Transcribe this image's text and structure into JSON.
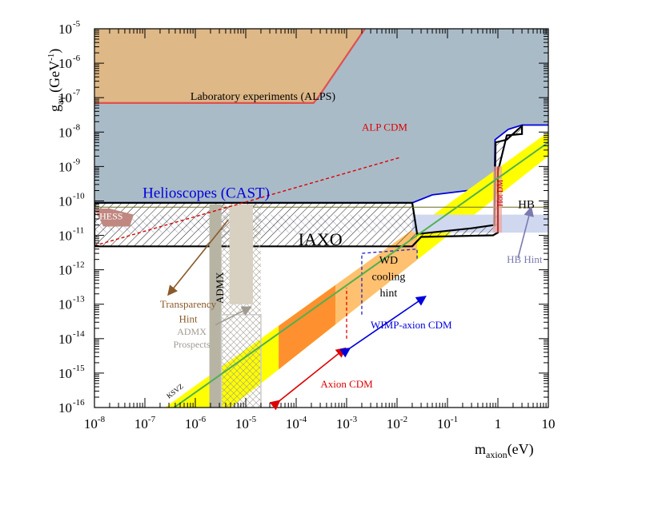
{
  "chart_data": {
    "type": "area",
    "title": "",
    "x_axis": {
      "label_main": "m",
      "label_sub": "axion",
      "label_unit": "(eV)",
      "scale": "log",
      "range": [
        1e-08,
        10
      ],
      "ticks": [
        {
          "base": "10",
          "exp": "-8",
          "value": 1e-08
        },
        {
          "base": "10",
          "exp": "-7",
          "value": 1e-07
        },
        {
          "base": "10",
          "exp": "-6",
          "value": 1e-06
        },
        {
          "base": "10",
          "exp": "-5",
          "value": 1e-05
        },
        {
          "base": "10",
          "exp": "-4",
          "value": 0.0001
        },
        {
          "base": "10",
          "exp": "-3",
          "value": 0.001
        },
        {
          "base": "10",
          "exp": "-2",
          "value": 0.01
        },
        {
          "base": "10",
          "exp": "-1",
          "value": 0.1
        },
        {
          "base": "1",
          "exp": "",
          "value": 1
        },
        {
          "base": "10",
          "exp": "",
          "value": 10
        }
      ]
    },
    "y_axis": {
      "label_main": "g",
      "label_sub": "aγ",
      "label_unit": "(GeV",
      "label_unit_exp": "-1",
      "label_close": ")",
      "scale": "log",
      "range": [
        1e-16,
        1e-05
      ],
      "ticks": [
        {
          "exp": "-16",
          "value": 1e-16
        },
        {
          "exp": "-15",
          "value": 1e-15
        },
        {
          "exp": "-14",
          "value": 1e-14
        },
        {
          "exp": "-13",
          "value": 1e-13
        },
        {
          "exp": "-12",
          "value": 1e-12
        },
        {
          "exp": "-11",
          "value": 1e-11
        },
        {
          "exp": "-10",
          "value": 1e-10
        },
        {
          "exp": "-9",
          "value": 1e-09
        },
        {
          "exp": "-8",
          "value": 1e-08
        },
        {
          "exp": "-7",
          "value": 1e-07
        },
        {
          "exp": "-6",
          "value": 1e-06
        },
        {
          "exp": "-5",
          "value": 1e-05
        }
      ]
    },
    "grid": false,
    "regions": [
      {
        "name": "Helioscopes (CAST)",
        "color": "#aabbc8",
        "edge_color": "#0000dd",
        "points": [
          [
            1e-08,
            1e-05
          ],
          [
            10,
            1e-05
          ],
          [
            10,
            1.6e-08
          ],
          [
            3,
            1.6e-08
          ],
          [
            1.6,
            1.2e-08
          ],
          [
            0.88,
            6e-09
          ],
          [
            0.85,
            3e-10
          ],
          [
            0.5,
            2e-10
          ],
          [
            0.25,
            2e-10
          ],
          [
            0.05,
            1.5e-10
          ],
          [
            0.02,
            8.8e-11
          ],
          [
            1e-08,
            8.8e-11
          ]
        ]
      },
      {
        "name": "Laboratory experiments (ALPS)",
        "color": "#deb887",
        "edge_color": "#e05050",
        "points": [
          [
            1e-08,
            1e-05
          ],
          [
            0.0023,
            1e-05
          ],
          [
            0.00027,
            1e-07
          ],
          [
            0.00022,
            7e-08
          ],
          [
            1e-08,
            7e-08
          ]
        ]
      },
      {
        "name": "HESS",
        "color": "#c08880",
        "points": [
          [
            1e-08,
            6e-11
          ],
          [
            2e-08,
            6e-11
          ],
          [
            6e-08,
            4e-11
          ],
          [
            5e-08,
            1.8e-11
          ],
          [
            1.5e-08,
            1.8e-11
          ]
        ]
      },
      {
        "name": "IAXO",
        "color": "#ffffff",
        "hatch": "#000000",
        "points": [
          [
            1e-08,
            8.8e-11
          ],
          [
            0.02,
            8.8e-11
          ],
          [
            0.025,
            1.1e-11
          ],
          [
            0.3,
            1.6e-11
          ],
          [
            0.85,
            2e-11
          ],
          [
            0.9,
            5e-09
          ],
          [
            1.5,
            6e-09
          ],
          [
            2.5,
            1.2e-08
          ],
          [
            3,
            1.5e-08
          ],
          [
            3,
            8.8e-09
          ],
          [
            1.5,
            8e-09
          ],
          [
            1,
            7e-10
          ],
          [
            1,
            1.2e-11
          ],
          [
            0.8,
            1e-11
          ],
          [
            0.03,
            9e-12
          ],
          [
            0.02,
            4.8e-12
          ],
          [
            1e-08,
            4.8e-12
          ]
        ]
      },
      {
        "name": "HB",
        "edge_color": "#6b6b20",
        "value": 6.6e-11,
        "x_range": [
          1e-08,
          10
        ]
      },
      {
        "name": "HB Hint",
        "color": "#d0d8f0",
        "x_range": [
          0.02,
          10
        ],
        "y_range": [
          1.2e-11,
          4e-11
        ]
      },
      {
        "name": "ADMX",
        "color": "#b8b4a4",
        "x_range": [
          1.9e-06,
          3.3e-06
        ],
        "y_range": [
          1e-16,
          8e-11
        ]
      },
      {
        "name": "ADMX Prospects",
        "color": "#d8d0c0",
        "x_range": [
          3.3e-06,
          2e-05
        ],
        "y_range": [
          1e-16,
          8e-11
        ]
      },
      {
        "name": "Hot DM",
        "color": "#e8a8a0",
        "x_range": [
          0.8,
          1.2
        ],
        "y_range": [
          1.2e-11,
          1e-09
        ]
      },
      {
        "name": "KSVZ band",
        "color": "#ffff00",
        "points": [
          [
            2.5e-07,
            1e-16
          ],
          [
            10,
            1e-08
          ],
          [
            10,
            2e-09
          ],
          [
            5e-06,
            1e-16
          ]
        ]
      },
      {
        "name": "Axion CDM (orange)",
        "color": "#ff9030",
        "points": [
          [
            4.5e-05,
            1e-16
          ],
          [
            0.0006,
            1e-16
          ],
          [
            0.0006,
            1e-12
          ],
          [
            4.5e-05,
            1e-12
          ]
        ]
      },
      {
        "name": "WD cooling hint",
        "color": "#ffc070",
        "edge_color": "#2020cc",
        "points": [
          [
            0.0006,
            1e-16
          ],
          [
            0.002,
            1e-16
          ],
          [
            0.002,
            3e-13
          ],
          [
            0.025,
            3e-13
          ],
          [
            0.025,
            1e-10
          ],
          [
            0.002,
            1e-10
          ],
          [
            0.0006,
            1e-10
          ]
        ]
      }
    ],
    "lines": [
      {
        "name": "KSVZ",
        "color": "#50b050",
        "points": [
          [
            1e-07,
            2.5e-17
          ],
          [
            10,
            5e-09
          ]
        ]
      },
      {
        "name": "ALP CDM",
        "color": "#dd0000",
        "style": "dashed",
        "points": [
          [
            1e-08,
            5e-12
          ],
          [
            0.011,
            1.8e-09
          ]
        ]
      }
    ],
    "labels": [
      {
        "text": "Laboratory experiments (ALPS)",
        "color": "#000000"
      },
      {
        "text": "Helioscopes (CAST)",
        "color": "#0000dd"
      },
      {
        "text": "HESS",
        "color": "#ffffff"
      },
      {
        "text": "IAXO",
        "color": "#000000"
      },
      {
        "text": "HB",
        "color": "#000000"
      },
      {
        "text": "HB Hint",
        "color": "#7a7ab0"
      },
      {
        "text": "ALP CDM",
        "color": "#dd0000"
      },
      {
        "text": "Transparency",
        "color": "#8b5a2b"
      },
      {
        "text": "Hint",
        "color": "#8b5a2b"
      },
      {
        "text": "ADMX",
        "color": "#000000"
      },
      {
        "text": "ADMX",
        "color": "#a09a90"
      },
      {
        "text": "Prospects",
        "color": "#a09a90"
      },
      {
        "text": "WD",
        "color": "#000000"
      },
      {
        "text": "cooling",
        "color": "#000000"
      },
      {
        "text": "hint",
        "color": "#000000"
      },
      {
        "text": "WIMP-axion CDM",
        "color": "#0000dd"
      },
      {
        "text": "Axion CDM",
        "color": "#dd0000"
      },
      {
        "text": "Hot DM",
        "color": "#cc0000"
      },
      {
        "text": "KSVZ",
        "color": "#000000"
      }
    ]
  }
}
